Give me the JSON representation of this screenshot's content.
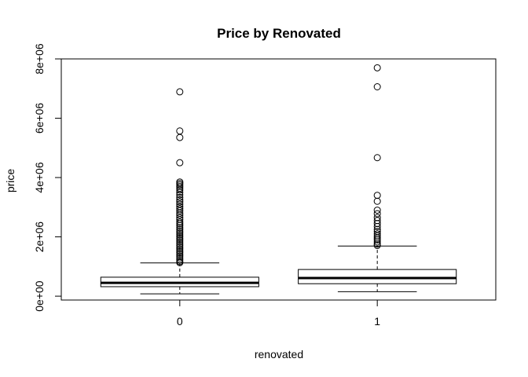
{
  "chart_data": {
    "type": "boxplot",
    "title": "Price by Renovated",
    "xlabel": "renovated",
    "ylabel": "price",
    "ylim": [
      -130000,
      8000000
    ],
    "y_ticks": [
      0,
      2000000,
      4000000,
      6000000,
      8000000
    ],
    "y_tick_labels": [
      "0e+00",
      "2e+06",
      "4e+06",
      "6e+06",
      "8e+06"
    ],
    "categories": [
      "0",
      "1"
    ],
    "grid": false,
    "boxes": [
      {
        "category": "0",
        "whisker_low": 80000,
        "q1": 320000,
        "median": 450000,
        "q3": 640000,
        "whisker_high": 1120000,
        "outliers": [
          6890000,
          5570000,
          5350000,
          4500000,
          3850000,
          3800000,
          3750000,
          3700000,
          3640000,
          3580000,
          3500000,
          3420000,
          3330000,
          3250000,
          3180000,
          3100000,
          3020000,
          2950000,
          2880000,
          2800000,
          2730000,
          2650000,
          2580000,
          2500000,
          2440000,
          2380000,
          2310000,
          2250000,
          2190000,
          2130000,
          2070000,
          2010000,
          1950000,
          1890000,
          1830000,
          1770000,
          1710000,
          1650000,
          1590000,
          1530000,
          1470000,
          1410000,
          1350000,
          1290000,
          1230000,
          1170000,
          1130000
        ]
      },
      {
        "category": "1",
        "whisker_low": 150000,
        "q1": 420000,
        "median": 610000,
        "q3": 900000,
        "whisker_high": 1690000,
        "outliers": [
          7700000,
          7060000,
          4670000,
          3400000,
          3200000,
          2900000,
          2780000,
          2650000,
          2550000,
          2450000,
          2350000,
          2250000,
          2180000,
          2100000,
          2030000,
          1960000,
          1900000,
          1830000,
          1760000,
          1710000
        ]
      }
    ]
  }
}
